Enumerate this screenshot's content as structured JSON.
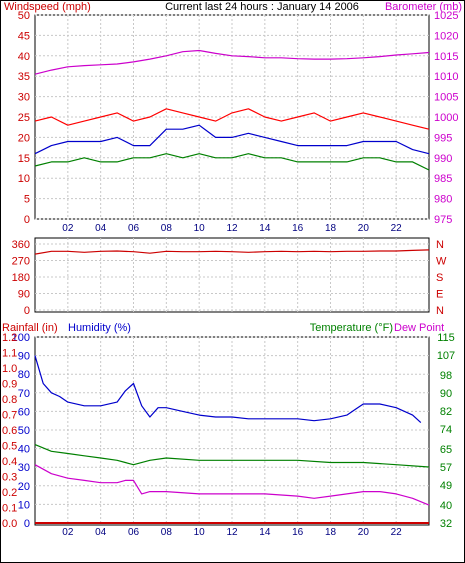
{
  "chart_data": [
    {
      "type": "line",
      "title": "Current last 24 hours : January 14 2006",
      "left_axis_label": "Windspeed (mph)",
      "right_axis_label": "Barometer (mb)",
      "left_ticks": [
        "0",
        "5",
        "10",
        "15",
        "20",
        "25",
        "30",
        "35",
        "40",
        "45",
        "50"
      ],
      "right_ticks": [
        "975",
        "980",
        "985",
        "990",
        "995",
        "1000",
        "1005",
        "1010",
        "1015",
        "1020",
        "1025"
      ],
      "ylim_left": [
        0,
        50
      ],
      "ylim_right": [
        975,
        1025
      ],
      "x_ticks": [
        "02",
        "04",
        "06",
        "08",
        "10",
        "12",
        "14",
        "16",
        "18",
        "20",
        "22"
      ],
      "xlim": [
        0,
        24
      ],
      "grid": true,
      "colors": {
        "gust": "#ff0000",
        "average": "#0000cc",
        "low": "#008000",
        "barometer": "#cc00cc"
      },
      "series": [
        {
          "key": "barometer",
          "axis": "right",
          "x": [
            0,
            1,
            2,
            3,
            4,
            5,
            6,
            7,
            8,
            9,
            10,
            11,
            12,
            13,
            14,
            15,
            16,
            17,
            18,
            19,
            20,
            21,
            22,
            23,
            24
          ],
          "values": [
            1010.5,
            1011.5,
            1012.3,
            1012.6,
            1012.8,
            1013.0,
            1013.5,
            1014.2,
            1015.0,
            1016.0,
            1016.3,
            1015.6,
            1015.0,
            1014.8,
            1014.5,
            1014.5,
            1014.3,
            1014.2,
            1014.2,
            1014.3,
            1014.5,
            1014.8,
            1015.2,
            1015.5,
            1015.8
          ]
        },
        {
          "key": "gust",
          "axis": "left",
          "x": [
            0,
            1,
            2,
            3,
            4,
            5,
            6,
            7,
            8,
            9,
            10,
            11,
            12,
            13,
            14,
            15,
            16,
            17,
            18,
            19,
            20,
            21,
            22,
            23,
            24
          ],
          "values": [
            24,
            25,
            23,
            24,
            25,
            26,
            24,
            25,
            27,
            26,
            25,
            24,
            26,
            27,
            25,
            24,
            25,
            26,
            24,
            25,
            26,
            25,
            24,
            23,
            22
          ]
        },
        {
          "key": "average",
          "axis": "left",
          "x": [
            0,
            1,
            2,
            3,
            4,
            5,
            6,
            7,
            8,
            9,
            10,
            11,
            12,
            13,
            14,
            15,
            16,
            17,
            18,
            19,
            20,
            21,
            22,
            23,
            24
          ],
          "values": [
            16,
            18,
            19,
            19,
            19,
            20,
            18,
            18,
            22,
            22,
            23,
            20,
            20,
            21,
            20,
            19,
            18,
            18,
            18,
            18,
            19,
            19,
            19,
            17,
            16
          ]
        },
        {
          "key": "low",
          "axis": "left",
          "x": [
            0,
            1,
            2,
            3,
            4,
            5,
            6,
            7,
            8,
            9,
            10,
            11,
            12,
            13,
            14,
            15,
            16,
            17,
            18,
            19,
            20,
            21,
            22,
            23,
            24
          ],
          "values": [
            13,
            14,
            14,
            15,
            14,
            14,
            15,
            15,
            16,
            15,
            16,
            15,
            15,
            16,
            15,
            15,
            14,
            14,
            14,
            14,
            15,
            15,
            14,
            14,
            12
          ]
        }
      ]
    },
    {
      "type": "line",
      "left_ticks": [
        "360",
        "270",
        "180",
        "90",
        "0"
      ],
      "right_labels": [
        "N",
        "W",
        "S",
        "E",
        "N"
      ],
      "ylim": [
        0,
        360
      ],
      "xlim": [
        0,
        24
      ],
      "grid": true,
      "colors": {
        "direction": "#cc0000"
      },
      "series": [
        {
          "key": "direction",
          "x": [
            0,
            1,
            2,
            3,
            4,
            5,
            6,
            7,
            8,
            9,
            10,
            11,
            12,
            13,
            14,
            15,
            16,
            17,
            18,
            19,
            20,
            21,
            22,
            23,
            24
          ],
          "values": [
            305,
            320,
            320,
            315,
            320,
            322,
            318,
            310,
            320,
            318,
            318,
            320,
            318,
            315,
            318,
            320,
            318,
            320,
            318,
            320,
            320,
            322,
            322,
            325,
            328
          ]
        }
      ]
    },
    {
      "type": "line",
      "rainfall_label": "Rainfall (in)",
      "humidity_label": "Humidity (%)",
      "temperature_label": "Temperature (°F)",
      "dewpoint_label": "Dew Point",
      "humidity_ticks": [
        "100",
        "90",
        "80",
        "70",
        "60",
        "50",
        "40",
        "30",
        "20",
        "10",
        "0"
      ],
      "rain_ticks": [
        "1.2",
        "1.1",
        "1.0",
        "0.9",
        "0.8",
        "0.7",
        "0.6",
        "0.5",
        "0.4",
        "0.3",
        "0.2",
        "0.1",
        "0.0"
      ],
      "temp_ticks": [
        "115",
        "107",
        "98",
        "90",
        "82",
        "74",
        "65",
        "57",
        "49",
        "40",
        "32"
      ],
      "ylim_humidity": [
        0,
        100
      ],
      "ylim_temperature": [
        32,
        115
      ],
      "ylim_rain": [
        0,
        1.2
      ],
      "x_ticks": [
        "02",
        "04",
        "06",
        "08",
        "10",
        "12",
        "14",
        "16",
        "18",
        "20",
        "22"
      ],
      "xlim": [
        0,
        24
      ],
      "grid": true,
      "colors": {
        "humidity": "#0000cc",
        "temperature": "#008000",
        "dewpoint": "#cc00cc",
        "rain": "#cc0000"
      },
      "series": [
        {
          "key": "humidity",
          "axis": "humidity",
          "x": [
            0,
            0.5,
            1,
            1.5,
            2,
            3,
            4,
            5,
            5.5,
            6,
            6.5,
            7,
            7.5,
            8,
            9,
            10,
            11,
            12,
            13,
            14,
            15,
            16,
            17,
            18,
            19,
            19.5,
            20,
            21,
            22,
            23,
            23.5
          ],
          "values": [
            90,
            75,
            70,
            68,
            65,
            63,
            63,
            65,
            71,
            75,
            63,
            57,
            62,
            62,
            60,
            58,
            57,
            57,
            56,
            56,
            56,
            56,
            55,
            56,
            58,
            61,
            64,
            64,
            62,
            58,
            54
          ]
        },
        {
          "key": "temperature",
          "axis": "temperature",
          "x": [
            0,
            1,
            2,
            3,
            4,
            5,
            5.5,
            6,
            7,
            8,
            10,
            12,
            14,
            16,
            18,
            20,
            22,
            24
          ],
          "values": [
            67,
            64,
            63,
            62,
            61,
            60,
            59,
            58,
            60,
            61,
            60,
            60,
            60,
            60,
            59,
            59,
            58,
            57
          ]
        },
        {
          "key": "dewpoint",
          "axis": "temperature",
          "x": [
            0,
            1,
            2,
            3,
            4,
            5,
            5.5,
            6,
            6.5,
            7,
            8,
            10,
            12,
            14,
            16,
            17,
            18,
            19,
            20,
            21,
            22,
            23,
            24
          ],
          "values": [
            58,
            54,
            52,
            51,
            50,
            50,
            51,
            51,
            45,
            46,
            46,
            45,
            45,
            45,
            44,
            43,
            44,
            45,
            46,
            46,
            45,
            43,
            40
          ]
        },
        {
          "key": "rain",
          "axis": "rain",
          "x": [
            0,
            24
          ],
          "values": [
            0,
            0
          ]
        }
      ]
    }
  ]
}
